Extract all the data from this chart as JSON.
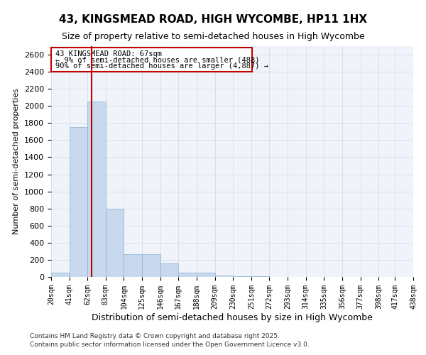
{
  "title": "43, KINGSMEAD ROAD, HIGH WYCOMBE, HP11 1HX",
  "subtitle": "Size of property relative to semi-detached houses in High Wycombe",
  "xlabel": "Distribution of semi-detached houses by size in High Wycombe",
  "ylabel": "Number of semi-detached properties",
  "property_size": 67,
  "property_label": "43 KINGSMEAD ROAD: 67sqm",
  "annotation_line1": "← 9% of semi-detached houses are smaller (488)",
  "annotation_line2": "90% of semi-detached houses are larger (4,887) →",
  "footnote1": "Contains HM Land Registry data © Crown copyright and database right 2025.",
  "footnote2": "Contains public sector information licensed under the Open Government Licence v3.0.",
  "bar_color": "#c8d9ee",
  "bar_edge_color": "#8ab0d4",
  "vline_color": "#c00000",
  "annotation_box_color": "#c00000",
  "ylim": [
    0,
    2700
  ],
  "yticks": [
    0,
    200,
    400,
    600,
    800,
    1000,
    1200,
    1400,
    1600,
    1800,
    2000,
    2200,
    2400,
    2600
  ],
  "bin_edges": [
    20,
    41,
    62,
    83,
    104,
    125,
    146,
    167,
    188,
    209,
    230,
    251,
    272,
    293,
    314,
    335,
    356,
    377,
    398,
    417,
    438
  ],
  "bin_counts": [
    50,
    1750,
    2050,
    800,
    270,
    270,
    160,
    50,
    50,
    20,
    10,
    5,
    3,
    2,
    1,
    1,
    0,
    0,
    0,
    0
  ]
}
